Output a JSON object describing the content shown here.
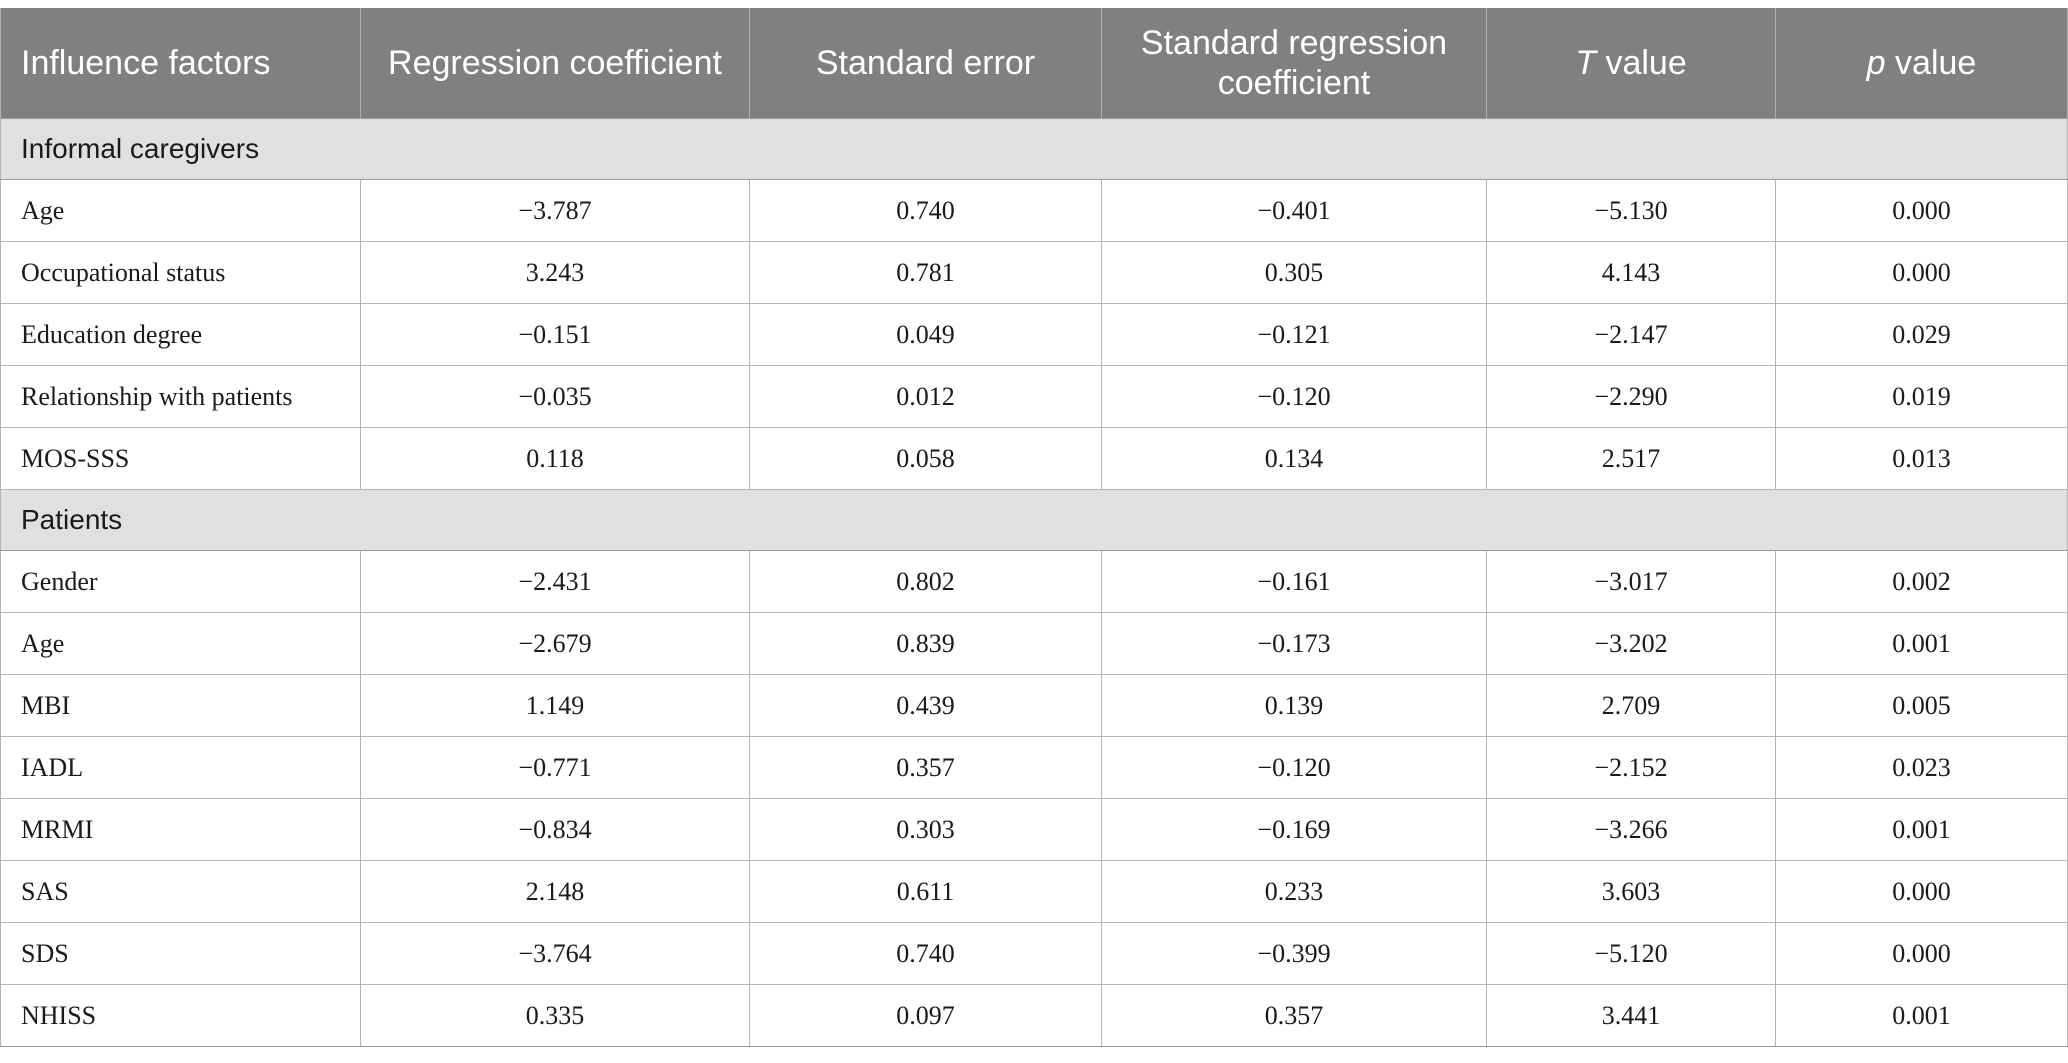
{
  "headers": {
    "influence_factors": "Influence factors",
    "regression_coefficient": "Regression coefficient",
    "standard_error": "Standard error",
    "standard_regression_coefficient": "Standard regression coefficient",
    "t_value_symbol": "T",
    "t_value_suffix": " value",
    "p_value_symbol": "p",
    "p_value_suffix": " value"
  },
  "sections": [
    {
      "title": "Informal caregivers",
      "rows": [
        {
          "factor": "Age",
          "coef": "−3.787",
          "se": "0.740",
          "std_coef": "−0.401",
          "t": "−5.130",
          "p": "0.000"
        },
        {
          "factor": "Occupational status",
          "coef": "3.243",
          "se": "0.781",
          "std_coef": "0.305",
          "t": "4.143",
          "p": "0.000"
        },
        {
          "factor": "Education degree",
          "coef": "−0.151",
          "se": "0.049",
          "std_coef": "−0.121",
          "t": "−2.147",
          "p": "0.029"
        },
        {
          "factor": "Relationship with patients",
          "coef": "−0.035",
          "se": "0.012",
          "std_coef": "−0.120",
          "t": "−2.290",
          "p": "0.019"
        },
        {
          "factor": "MOS-SSS",
          "coef": "0.118",
          "se": "0.058",
          "std_coef": "0.134",
          "t": "2.517",
          "p": "0.013"
        }
      ]
    },
    {
      "title": "Patients",
      "rows": [
        {
          "factor": "Gender",
          "coef": "−2.431",
          "se": "0.802",
          "std_coef": "−0.161",
          "t": "−3.017",
          "p": "0.002"
        },
        {
          "factor": "Age",
          "coef": "−2.679",
          "se": "0.839",
          "std_coef": "−0.173",
          "t": "−3.202",
          "p": "0.001"
        },
        {
          "factor": "MBI",
          "coef": "1.149",
          "se": "0.439",
          "std_coef": "0.139",
          "t": "2.709",
          "p": "0.005"
        },
        {
          "factor": "IADL",
          "coef": "−0.771",
          "se": "0.357",
          "std_coef": "−0.120",
          "t": "−2.152",
          "p": "0.023"
        },
        {
          "factor": "MRMI",
          "coef": "−0.834",
          "se": "0.303",
          "std_coef": "−0.169",
          "t": "−3.266",
          "p": "0.001"
        },
        {
          "factor": "SAS",
          "coef": "2.148",
          "se": "0.611",
          "std_coef": "0.233",
          "t": "3.603",
          "p": "0.000"
        },
        {
          "factor": "SDS",
          "coef": "−3.764",
          "se": "0.740",
          "std_coef": "−0.399",
          "t": "−5.120",
          "p": "0.000"
        },
        {
          "factor": "NHISS",
          "coef": "0.335",
          "se": "0.097",
          "std_coef": "0.357",
          "t": "3.441",
          "p": "0.001"
        }
      ]
    }
  ]
}
